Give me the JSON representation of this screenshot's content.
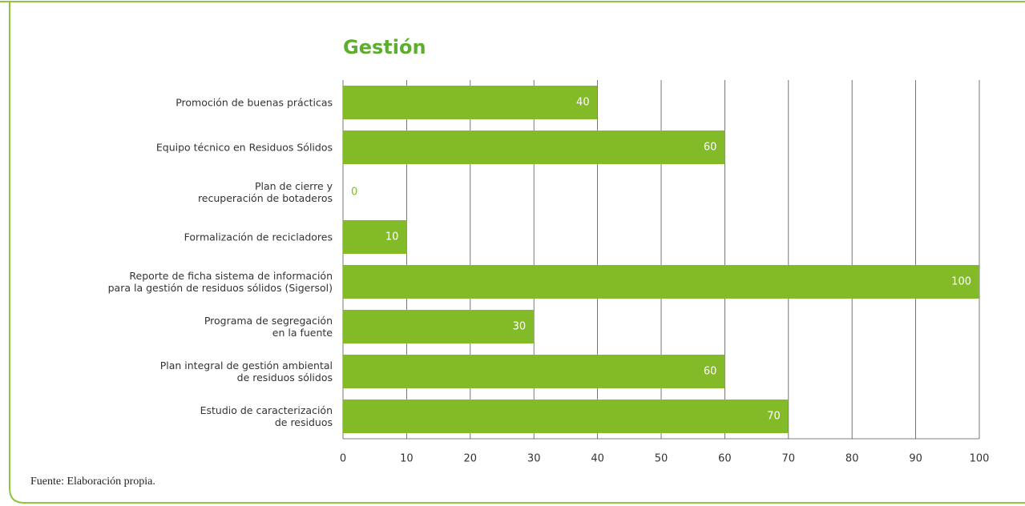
{
  "chart_data": {
    "type": "bar",
    "orientation": "horizontal",
    "title": "Gestión",
    "categories": [
      "Promoción de buenas prácticas",
      "Equipo técnico en Residuos Sólidos",
      "Plan de cierre y\nrecuperación de botaderos",
      "Formalización de recicladores",
      "Reporte de ficha sistema de información\npara la gestión de residuos sólidos (Sigersol)",
      "Programa de segregación\nen la fuente",
      "Plan integral de gestión ambiental\nde residuos sólidos",
      "Estudio de caracterización\nde residuos"
    ],
    "values": [
      40,
      60,
      0,
      10,
      100,
      30,
      60,
      70
    ],
    "color": "#82bb27",
    "xlim": [
      0,
      100
    ],
    "xticks": [
      0,
      10,
      20,
      30,
      40,
      50,
      60,
      70,
      80,
      90,
      100
    ],
    "grid": true,
    "source": "Fuente: Elaboración propia."
  }
}
